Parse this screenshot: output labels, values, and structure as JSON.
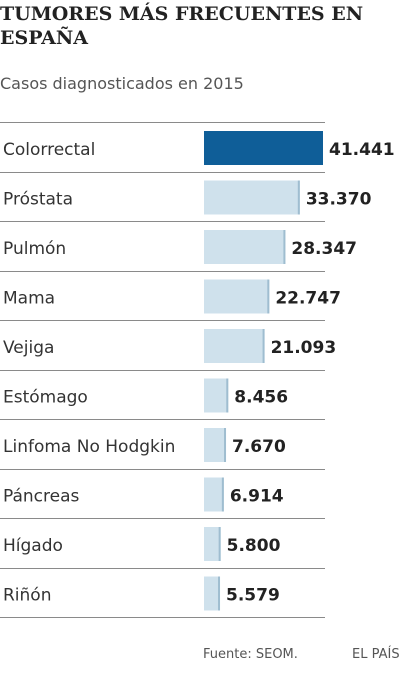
{
  "header": {
    "title": "TUMORES MÁS FRECUENTES EN ESPAÑA",
    "subtitle": "Casos diagnosticados en 2015"
  },
  "footer": {
    "source": "Fuente: SEOM.",
    "brand": "EL PAÍS"
  },
  "colors": {
    "highlight": "#0f5e98",
    "bar": "#cfe1ec",
    "divider": "#8a8a8a",
    "label": "#333333",
    "value": "#222222"
  },
  "chart_data": {
    "type": "bar",
    "orientation": "horizontal",
    "title": "TUMORES MÁS FRECUENTES EN ESPAÑA",
    "subtitle": "Casos diagnosticados en 2015",
    "categories": [
      "Colorrectal",
      "Próstata",
      "Pulmón",
      "Mama",
      "Vejiga",
      "Estómago",
      "Linfoma No Hodgkin",
      "Páncreas",
      "Hígado",
      "Riñón"
    ],
    "values": [
      41441,
      33370,
      28347,
      22747,
      21093,
      8456,
      7670,
      6914,
      5800,
      5579
    ],
    "value_labels": [
      "41.441",
      "33.370",
      "28.347",
      "22.747",
      "21.093",
      "8.456",
      "7.670",
      "6.914",
      "5.800",
      "5.579"
    ],
    "highlighted_category": "Colorrectal",
    "xlim": [
      0,
      41441
    ],
    "grid": false,
    "legend": "none"
  }
}
